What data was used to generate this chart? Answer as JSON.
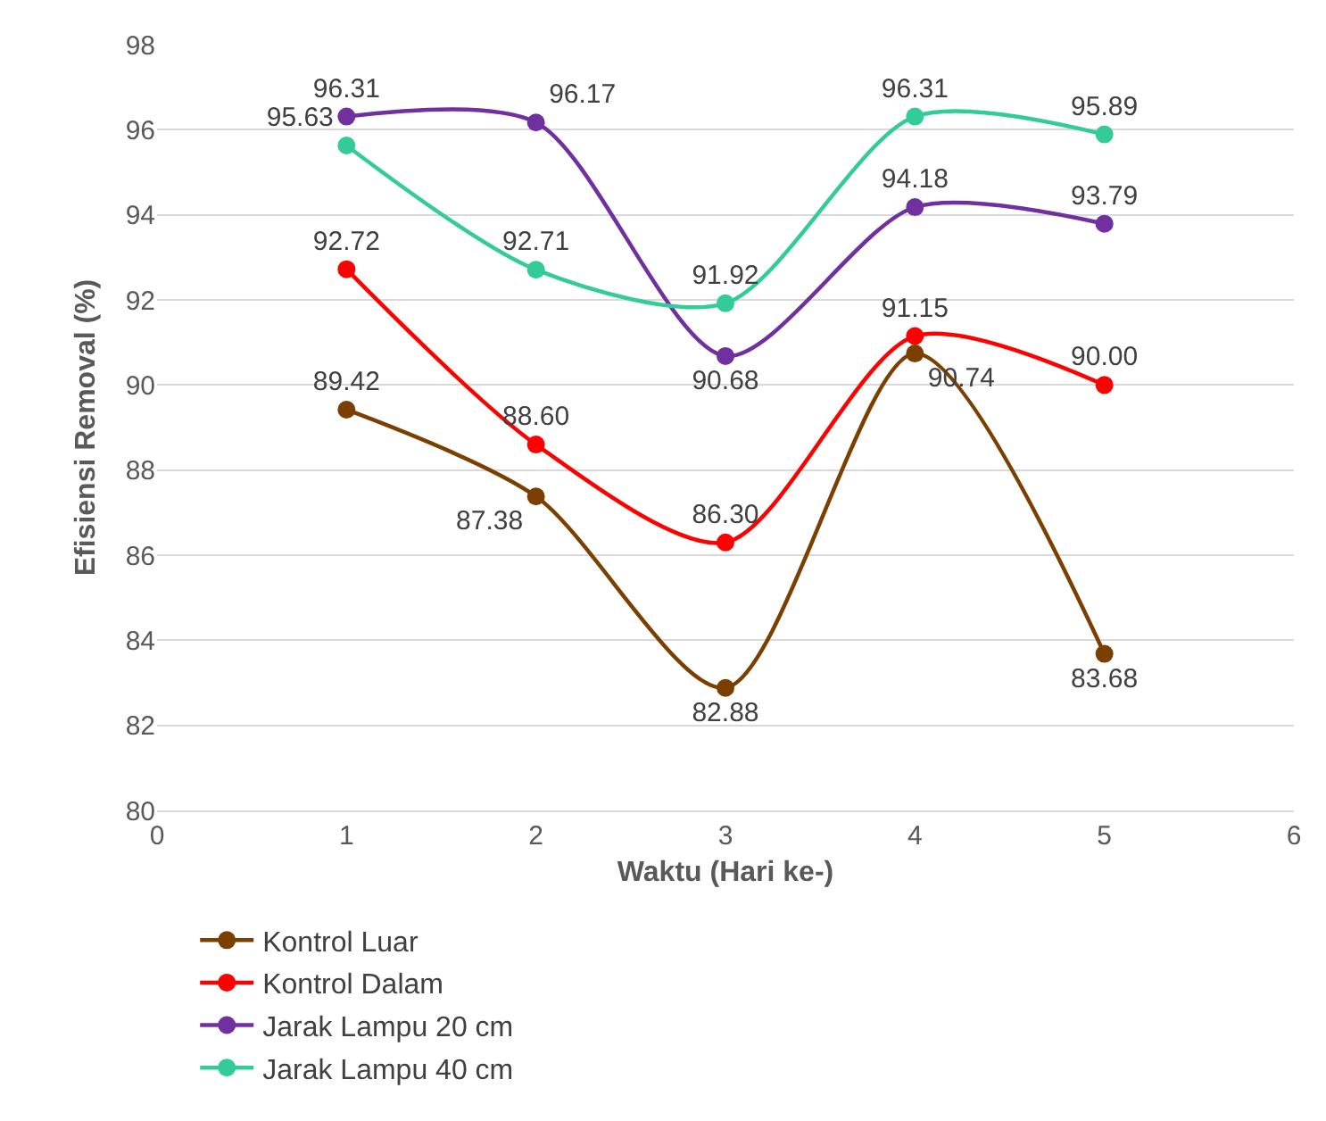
{
  "chart_data": {
    "type": "line",
    "xlabel": "Waktu (Hari ke-)",
    "ylabel": "Efisiensi Removal (%)",
    "x": [
      1,
      2,
      3,
      4,
      5
    ],
    "series": [
      {
        "name": "Kontrol Luar",
        "color": "#7b3f00",
        "values": [
          89.42,
          87.38,
          82.88,
          90.74,
          83.68
        ],
        "value_labels": [
          "89.42",
          "87.38",
          "82.88",
          "90.74",
          "83.68"
        ]
      },
      {
        "name": "Kontrol Dalam",
        "color": "#ff0000",
        "values": [
          92.72,
          88.6,
          86.3,
          91.15,
          90.0
        ],
        "value_labels": [
          "92.72",
          "88.60",
          "86.30",
          "91.15",
          "90.00"
        ]
      },
      {
        "name": "Jarak Lampu 20 cm",
        "color": "#7030a0",
        "values": [
          96.31,
          96.17,
          90.68,
          94.18,
          93.79
        ],
        "value_labels": [
          "96.31",
          "96.17",
          "90.68",
          "94.18",
          "93.79"
        ]
      },
      {
        "name": "Jarak Lampu 40 cm",
        "color": "#33cc99",
        "values": [
          95.63,
          92.71,
          91.92,
          96.31,
          95.89
        ],
        "value_labels": [
          "95.63",
          "92.71",
          "91.92",
          "96.31",
          "95.89"
        ]
      }
    ],
    "xlim": [
      0,
      6
    ],
    "xticks": [
      0,
      1,
      2,
      3,
      4,
      5,
      6
    ],
    "ylim": [
      80,
      98
    ],
    "yticks": [
      80,
      82,
      84,
      86,
      88,
      90,
      92,
      94,
      96,
      98
    ],
    "grid": "y",
    "legend": "bottom",
    "marker": "circle",
    "line_style": "solid"
  }
}
